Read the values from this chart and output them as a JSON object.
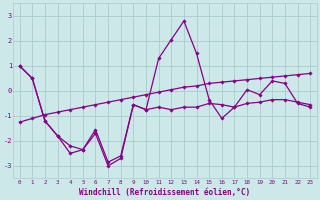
{
  "xlabel": "Windchill (Refroidissement éolien,°C)",
  "bg_color": "#cce8e8",
  "grid_color": "#aacccc",
  "line_color": "#880088",
  "xlim": [
    -0.5,
    23.5
  ],
  "ylim": [
    -3.5,
    3.5
  ],
  "xticks": [
    0,
    1,
    2,
    3,
    4,
    5,
    6,
    7,
    8,
    9,
    10,
    11,
    12,
    13,
    14,
    15,
    16,
    17,
    18,
    19,
    20,
    21,
    22,
    23
  ],
  "yticks": [
    -3,
    -2,
    -1,
    0,
    1,
    2,
    3
  ],
  "series": [
    [
      1.0,
      0.5,
      -1.2,
      -1.8,
      -2.5,
      -2.35,
      -1.7,
      -3.0,
      -2.7,
      -0.55,
      -0.75,
      1.3,
      2.05,
      2.8,
      1.5,
      -0.35,
      -1.1,
      -0.65,
      0.05,
      -0.15,
      0.4,
      0.3,
      -0.5,
      -0.65
    ],
    [
      1.0,
      0.5,
      -1.2,
      -1.8,
      -2.2,
      -2.35,
      -1.55,
      -2.85,
      -2.6,
      -0.55,
      -0.75,
      -0.65,
      -0.75,
      -0.65,
      -0.65,
      -0.5,
      -0.55,
      -0.65,
      -0.5,
      -0.45,
      -0.35,
      -0.35,
      -0.45,
      -0.55
    ],
    [
      -1.25,
      -1.1,
      -0.95,
      -0.85,
      -0.75,
      -0.65,
      -0.55,
      -0.45,
      -0.35,
      -0.25,
      -0.15,
      -0.05,
      0.05,
      0.15,
      0.2,
      0.3,
      0.35,
      0.4,
      0.45,
      0.5,
      0.55,
      0.6,
      0.65,
      0.7
    ]
  ]
}
